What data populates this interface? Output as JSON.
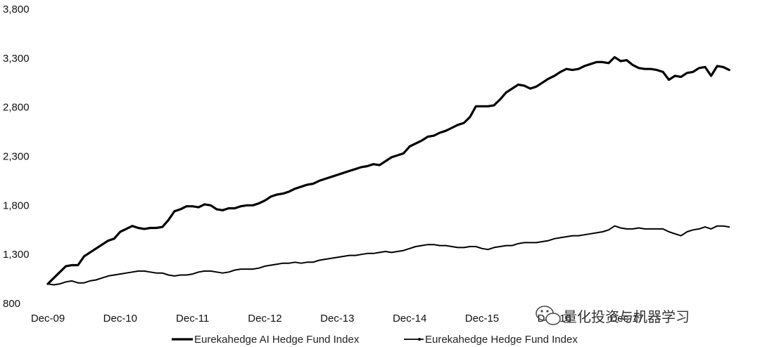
{
  "chart_data": {
    "type": "line",
    "title": "",
    "xlabel": "",
    "ylabel": "",
    "ylim": [
      800,
      3800
    ],
    "yticks": [
      800,
      1300,
      1800,
      2300,
      2800,
      3300,
      3800
    ],
    "ytick_labels": [
      "800",
      "1,300",
      "1,800",
      "2,300",
      "2,800",
      "3,300",
      "3,800"
    ],
    "xlim": [
      2009.917,
      2019.0
    ],
    "xticks": [
      2009.917,
      2010.917,
      2011.917,
      2012.917,
      2013.917,
      2014.917,
      2015.917,
      2016.917,
      2017.917
    ],
    "xtick_labels": [
      "Dec-09",
      "Dec-10",
      "Dec-11",
      "Dec-12",
      "Dec-13",
      "Dec-14",
      "Dec-15",
      "Dec-16",
      "Dec-17"
    ],
    "grid": false,
    "legend_position": "bottom",
    "series": [
      {
        "name": "Eurekahedge AI Hedge Fund Index",
        "color": "#000000",
        "points": [
          [
            2009.917,
            1000
          ],
          [
            2010.0,
            1060
          ],
          [
            2010.083,
            1120
          ],
          [
            2010.167,
            1180
          ],
          [
            2010.25,
            1190
          ],
          [
            2010.333,
            1190
          ],
          [
            2010.417,
            1280
          ],
          [
            2010.5,
            1320
          ],
          [
            2010.583,
            1360
          ],
          [
            2010.667,
            1400
          ],
          [
            2010.75,
            1440
          ],
          [
            2010.833,
            1460
          ],
          [
            2010.917,
            1530
          ],
          [
            2011.0,
            1560
          ],
          [
            2011.083,
            1590
          ],
          [
            2011.167,
            1570
          ],
          [
            2011.25,
            1560
          ],
          [
            2011.333,
            1570
          ],
          [
            2011.417,
            1570
          ],
          [
            2011.5,
            1580
          ],
          [
            2011.583,
            1650
          ],
          [
            2011.667,
            1740
          ],
          [
            2011.75,
            1760
          ],
          [
            2011.833,
            1790
          ],
          [
            2011.917,
            1790
          ],
          [
            2012.0,
            1780
          ],
          [
            2012.083,
            1810
          ],
          [
            2012.167,
            1800
          ],
          [
            2012.25,
            1760
          ],
          [
            2012.333,
            1750
          ],
          [
            2012.417,
            1770
          ],
          [
            2012.5,
            1770
          ],
          [
            2012.583,
            1790
          ],
          [
            2012.667,
            1800
          ],
          [
            2012.75,
            1800
          ],
          [
            2012.833,
            1820
          ],
          [
            2012.917,
            1850
          ],
          [
            2013.0,
            1890
          ],
          [
            2013.083,
            1910
          ],
          [
            2013.167,
            1920
          ],
          [
            2013.25,
            1940
          ],
          [
            2013.333,
            1970
          ],
          [
            2013.417,
            1990
          ],
          [
            2013.5,
            2010
          ],
          [
            2013.583,
            2020
          ],
          [
            2013.667,
            2050
          ],
          [
            2013.75,
            2070
          ],
          [
            2013.833,
            2090
          ],
          [
            2013.917,
            2110
          ],
          [
            2014.0,
            2130
          ],
          [
            2014.083,
            2150
          ],
          [
            2014.167,
            2170
          ],
          [
            2014.25,
            2190
          ],
          [
            2014.333,
            2200
          ],
          [
            2014.417,
            2220
          ],
          [
            2014.5,
            2210
          ],
          [
            2014.583,
            2250
          ],
          [
            2014.667,
            2290
          ],
          [
            2014.75,
            2310
          ],
          [
            2014.833,
            2330
          ],
          [
            2014.917,
            2400
          ],
          [
            2015.0,
            2430
          ],
          [
            2015.083,
            2460
          ],
          [
            2015.167,
            2500
          ],
          [
            2015.25,
            2510
          ],
          [
            2015.333,
            2540
          ],
          [
            2015.417,
            2560
          ],
          [
            2015.5,
            2590
          ],
          [
            2015.583,
            2620
          ],
          [
            2015.667,
            2640
          ],
          [
            2015.75,
            2700
          ],
          [
            2015.833,
            2810
          ],
          [
            2015.917,
            2810
          ],
          [
            2016.0,
            2810
          ],
          [
            2016.083,
            2820
          ],
          [
            2016.167,
            2880
          ],
          [
            2016.25,
            2950
          ],
          [
            2016.333,
            2990
          ],
          [
            2016.417,
            3030
          ],
          [
            2016.5,
            3020
          ],
          [
            2016.583,
            2990
          ],
          [
            2016.667,
            3010
          ],
          [
            2016.75,
            3050
          ],
          [
            2016.833,
            3090
          ],
          [
            2016.917,
            3120
          ],
          [
            2017.0,
            3160
          ],
          [
            2017.083,
            3190
          ],
          [
            2017.167,
            3180
          ],
          [
            2017.25,
            3190
          ],
          [
            2017.333,
            3220
          ],
          [
            2017.417,
            3240
          ],
          [
            2017.5,
            3260
          ],
          [
            2017.583,
            3260
          ],
          [
            2017.667,
            3250
          ],
          [
            2017.75,
            3310
          ],
          [
            2017.833,
            3270
          ],
          [
            2017.917,
            3280
          ],
          [
            2018.0,
            3230
          ],
          [
            2018.083,
            3200
          ],
          [
            2018.167,
            3190
          ],
          [
            2018.25,
            3190
          ],
          [
            2018.333,
            3180
          ],
          [
            2018.417,
            3160
          ],
          [
            2018.5,
            3080
          ],
          [
            2018.583,
            3120
          ],
          [
            2018.667,
            3110
          ],
          [
            2018.75,
            3150
          ],
          [
            2018.833,
            3160
          ],
          [
            2018.917,
            3200
          ],
          [
            2019.0,
            3210
          ],
          [
            2019.083,
            3120
          ],
          [
            2019.167,
            3220
          ],
          [
            2019.25,
            3210
          ],
          [
            2019.333,
            3180
          ]
        ]
      },
      {
        "name": "Eurekahedge Hedge Fund Index",
        "color": "#000000",
        "points": [
          [
            2009.917,
            1000
          ],
          [
            2010.0,
            990
          ],
          [
            2010.083,
            1000
          ],
          [
            2010.167,
            1020
          ],
          [
            2010.25,
            1030
          ],
          [
            2010.333,
            1010
          ],
          [
            2010.417,
            1010
          ],
          [
            2010.5,
            1030
          ],
          [
            2010.583,
            1040
          ],
          [
            2010.667,
            1060
          ],
          [
            2010.75,
            1080
          ],
          [
            2010.833,
            1090
          ],
          [
            2010.917,
            1100
          ],
          [
            2011.0,
            1110
          ],
          [
            2011.083,
            1120
          ],
          [
            2011.167,
            1130
          ],
          [
            2011.25,
            1130
          ],
          [
            2011.333,
            1120
          ],
          [
            2011.417,
            1110
          ],
          [
            2011.5,
            1110
          ],
          [
            2011.583,
            1090
          ],
          [
            2011.667,
            1080
          ],
          [
            2011.75,
            1090
          ],
          [
            2011.833,
            1090
          ],
          [
            2011.917,
            1100
          ],
          [
            2012.0,
            1120
          ],
          [
            2012.083,
            1130
          ],
          [
            2012.167,
            1130
          ],
          [
            2012.25,
            1120
          ],
          [
            2012.333,
            1110
          ],
          [
            2012.417,
            1120
          ],
          [
            2012.5,
            1140
          ],
          [
            2012.583,
            1150
          ],
          [
            2012.667,
            1150
          ],
          [
            2012.75,
            1150
          ],
          [
            2012.833,
            1160
          ],
          [
            2012.917,
            1180
          ],
          [
            2013.0,
            1190
          ],
          [
            2013.083,
            1200
          ],
          [
            2013.167,
            1210
          ],
          [
            2013.25,
            1210
          ],
          [
            2013.333,
            1220
          ],
          [
            2013.417,
            1210
          ],
          [
            2013.5,
            1220
          ],
          [
            2013.583,
            1220
          ],
          [
            2013.667,
            1240
          ],
          [
            2013.75,
            1250
          ],
          [
            2013.833,
            1260
          ],
          [
            2013.917,
            1270
          ],
          [
            2014.0,
            1280
          ],
          [
            2014.083,
            1290
          ],
          [
            2014.167,
            1290
          ],
          [
            2014.25,
            1300
          ],
          [
            2014.333,
            1310
          ],
          [
            2014.417,
            1310
          ],
          [
            2014.5,
            1320
          ],
          [
            2014.583,
            1330
          ],
          [
            2014.667,
            1320
          ],
          [
            2014.75,
            1330
          ],
          [
            2014.833,
            1340
          ],
          [
            2014.917,
            1360
          ],
          [
            2015.0,
            1380
          ],
          [
            2015.083,
            1390
          ],
          [
            2015.167,
            1400
          ],
          [
            2015.25,
            1400
          ],
          [
            2015.333,
            1390
          ],
          [
            2015.417,
            1390
          ],
          [
            2015.5,
            1380
          ],
          [
            2015.583,
            1370
          ],
          [
            2015.667,
            1370
          ],
          [
            2015.75,
            1380
          ],
          [
            2015.833,
            1380
          ],
          [
            2015.917,
            1360
          ],
          [
            2016.0,
            1350
          ],
          [
            2016.083,
            1370
          ],
          [
            2016.167,
            1380
          ],
          [
            2016.25,
            1390
          ],
          [
            2016.333,
            1390
          ],
          [
            2016.417,
            1410
          ],
          [
            2016.5,
            1420
          ],
          [
            2016.583,
            1420
          ],
          [
            2016.667,
            1420
          ],
          [
            2016.75,
            1430
          ],
          [
            2016.833,
            1440
          ],
          [
            2016.917,
            1460
          ],
          [
            2017.0,
            1470
          ],
          [
            2017.083,
            1480
          ],
          [
            2017.167,
            1490
          ],
          [
            2017.25,
            1490
          ],
          [
            2017.333,
            1500
          ],
          [
            2017.417,
            1510
          ],
          [
            2017.5,
            1520
          ],
          [
            2017.583,
            1530
          ],
          [
            2017.667,
            1550
          ],
          [
            2017.75,
            1590
          ],
          [
            2017.833,
            1570
          ],
          [
            2017.917,
            1560
          ],
          [
            2018.0,
            1560
          ],
          [
            2018.083,
            1570
          ],
          [
            2018.167,
            1560
          ],
          [
            2018.25,
            1560
          ],
          [
            2018.333,
            1560
          ],
          [
            2018.417,
            1560
          ],
          [
            2018.5,
            1530
          ],
          [
            2018.583,
            1510
          ],
          [
            2018.667,
            1490
          ],
          [
            2018.75,
            1530
          ],
          [
            2018.833,
            1550
          ],
          [
            2018.917,
            1560
          ],
          [
            2019.0,
            1580
          ],
          [
            2019.083,
            1560
          ],
          [
            2019.167,
            1590
          ],
          [
            2019.25,
            1590
          ],
          [
            2019.333,
            1580
          ]
        ]
      }
    ],
    "legend": [
      {
        "label": "Eurekahedge AI Hedge Fund Index",
        "style": "thick line"
      },
      {
        "label": "Eurekahedge Hedge Fund Index",
        "style": "thin line with dot"
      }
    ]
  },
  "watermark": {
    "text": "量化投资与机器学习",
    "icon": "wechat-icon"
  }
}
